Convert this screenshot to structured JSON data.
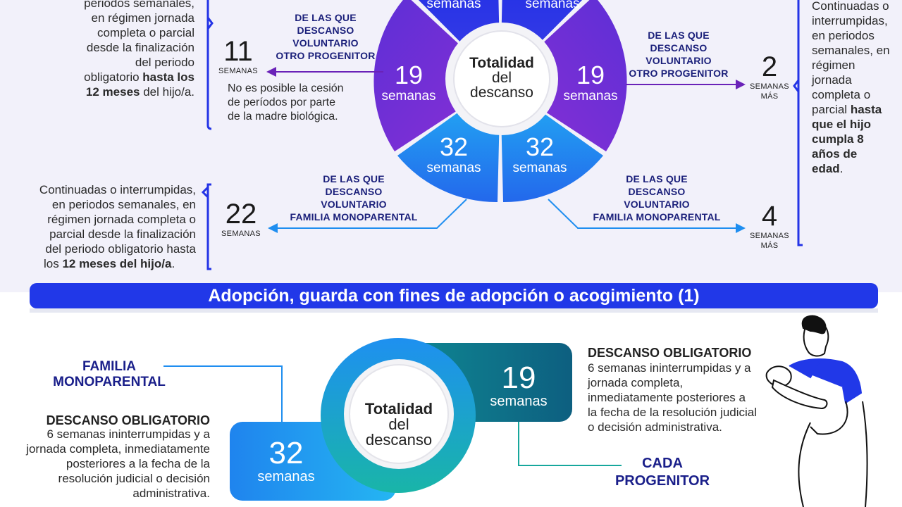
{
  "colors": {
    "banner": "#2138e8",
    "purple": "#7b2fd6",
    "blue": "#1f8ef0",
    "deep_blue": "#2434e6",
    "navy": "#1a1f7a",
    "teal": "#0e6f8a"
  },
  "top": {
    "center_label": [
      "Totalidad",
      "del",
      "descanso"
    ],
    "top_left_num": "semanas",
    "top_right_num": "semanas",
    "left_mid": {
      "value": "19",
      "unit": "semanas"
    },
    "right_mid": {
      "value": "19",
      "unit": "semanas"
    },
    "left_bottom": {
      "value": "32",
      "unit": "semanas"
    },
    "right_bottom": {
      "value": "32",
      "unit": "semanas"
    },
    "left_text_top": [
      "periodos semanales,",
      "en régimen jornada",
      "completa o parcial",
      "desde la finalización",
      "del periodo",
      "obligatorio ",
      "hasta los",
      "12 meses",
      " del hijo/a."
    ],
    "left_11": {
      "value": "11",
      "unit": "SEMANAS"
    },
    "label_otro_left": [
      "DE LAS QUE",
      "DESCANSO",
      "VOLUNTARIO",
      "OTRO PROGENITOR"
    ],
    "note_cesion": [
      "No es posible la cesión",
      "de períodos por parte",
      "de la madre biológica."
    ],
    "label_otro_right": [
      "DE LAS QUE",
      "DESCANSO",
      "VOLUNTARIO",
      "OTRO PROGENITOR"
    ],
    "right_2": {
      "value": "2",
      "unit": [
        "SEMANAS",
        "MÁS"
      ]
    },
    "right_text": [
      "Continuadas o",
      "interrumpidas,",
      "en periodos",
      "semanales, en",
      "régimen",
      "jornada",
      "completa o",
      "parcial ",
      "hasta",
      "que el hijo",
      "cumpla 8",
      "años de",
      "edad",
      "."
    ],
    "left_text_bottom": [
      "Continuadas o interrumpidas,",
      "en periodos semanales, en",
      "régimen jornada completa o",
      "parcial desde la finalización",
      "del periodo obligatorio hasta",
      "los ",
      "12 meses del hijo/a",
      "."
    ],
    "left_22": {
      "value": "22",
      "unit": "SEMANAS"
    },
    "label_mono_left": [
      "DE LAS QUE",
      "DESCANSO",
      "VOLUNTARIO",
      "FAMILIA MONOPARENTAL"
    ],
    "label_mono_right": [
      "DE LAS QUE",
      "DESCANSO",
      "VOLUNTARIO",
      "FAMILIA MONOPARENTAL"
    ],
    "right_4": {
      "value": "4",
      "unit": [
        "SEMANAS",
        "MÁS"
      ]
    }
  },
  "banner": {
    "title": "Adopción, guarda con fines de adopción o acogimiento (1)"
  },
  "bottom": {
    "familia_mono": [
      "FAMILIA",
      "MONOPARENTAL"
    ],
    "left_heading": "DESCANSO OBLIGATORIO",
    "left_text": [
      "6 semanas ininterrumpidas y a",
      "jornada completa, inmediatamente",
      "posteriores a la fecha de la",
      "resolución judicial o decisión",
      "administrativa."
    ],
    "center_label": [
      "Totalidad",
      "del",
      "descanso"
    ],
    "box_19": {
      "value": "19",
      "unit": "semanas"
    },
    "box_32": {
      "value": "32",
      "unit": "semanas"
    },
    "right_heading": "DESCANSO OBLIGATORIO",
    "right_text": [
      "6 semanas ininterrumpidas y a",
      "jornada completa,",
      "inmediatamente posteriores a",
      "la fecha de la resolución judicial",
      "o decisión administrativa."
    ],
    "cada_progenitor": [
      "CADA",
      "PROGENITOR"
    ]
  }
}
